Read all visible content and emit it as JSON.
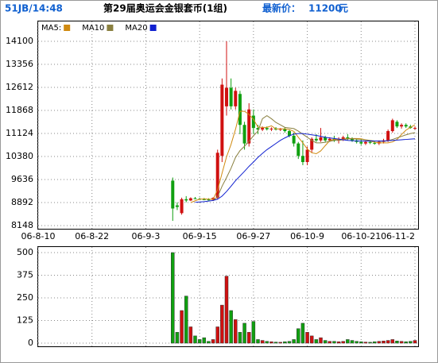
{
  "header": {
    "code": "51JB/14:48",
    "title": "第29届奥运会金银套币(1组)",
    "price_label": "最新价：",
    "price": 11200,
    "price_unit": "元"
  },
  "chart_data": {
    "type": "candlestick",
    "x": [
      "06-9-9",
      "06-9-10",
      "06-9-11",
      "06-9-12",
      "06-9-13",
      "06-9-14",
      "06-9-15",
      "06-9-16",
      "06-9-17",
      "06-9-18",
      "06-9-19",
      "06-9-20",
      "06-9-21",
      "06-9-22",
      "06-9-23",
      "06-9-24",
      "06-9-25",
      "06-9-26",
      "06-9-27",
      "06-9-28",
      "06-9-29",
      "06-9-30",
      "06-10-1",
      "06-10-2",
      "06-10-3",
      "06-10-4",
      "06-10-5",
      "06-10-6",
      "06-10-7",
      "06-10-8",
      "06-10-9",
      "06-10-10",
      "06-10-11",
      "06-10-12",
      "06-10-13",
      "06-10-14",
      "06-10-15",
      "06-10-16",
      "06-10-17",
      "06-10-18",
      "06-10-19",
      "06-10-20",
      "06-10-21",
      "06-10-22",
      "06-10-23",
      "06-10-24",
      "06-10-25",
      "06-10-26",
      "06-10-27",
      "06-10-28",
      "06-10-29",
      "06-10-30",
      "06-10-31",
      "06-11-1",
      "06-11-2"
    ],
    "open": [
      9600,
      8800,
      8550,
      9000,
      8960,
      9030,
      9010,
      9000,
      8990,
      8980,
      9050,
      10400,
      12000,
      12600,
      12000,
      12400,
      11400,
      10800,
      11700,
      11300,
      11250,
      11300,
      11260,
      11280,
      11250,
      11270,
      11200,
      11050,
      10800,
      10400,
      10200,
      10600,
      10950,
      10900,
      11000,
      10900,
      10950,
      10900,
      10950,
      11000,
      10950,
      10900,
      10850,
      10800,
      10850,
      10820,
      10800,
      10850,
      10900,
      11200,
      11500,
      11350,
      11400,
      11350,
      11300
    ],
    "high": [
      9700,
      8900,
      9050,
      9100,
      9060,
      9070,
      9050,
      9040,
      9030,
      9060,
      10600,
      12900,
      14100,
      12900,
      12600,
      12500,
      11500,
      12100,
      11900,
      11400,
      11350,
      11350,
      11320,
      11330,
      11300,
      11320,
      11250,
      11150,
      10850,
      10900,
      10700,
      11000,
      11100,
      11300,
      11050,
      11000,
      11050,
      11000,
      11050,
      11100,
      11000,
      10950,
      10950,
      10900,
      10900,
      10880,
      10900,
      10950,
      11250,
      11600,
      11550,
      11450,
      11450,
      11400,
      11350
    ],
    "low": [
      8300,
      8650,
      8500,
      8900,
      8940,
      9000,
      8980,
      8970,
      8960,
      8960,
      9000,
      10200,
      11700,
      11900,
      11900,
      11100,
      10600,
      10700,
      11100,
      11100,
      11200,
      11220,
      11200,
      11220,
      11200,
      11150,
      11000,
      10700,
      10300,
      10100,
      10100,
      10500,
      10850,
      10850,
      10850,
      10850,
      10850,
      10800,
      10880,
      10900,
      10850,
      10800,
      10750,
      10750,
      10780,
      10760,
      10750,
      10800,
      10850,
      11150,
      11300,
      11280,
      11300,
      11280,
      11250
    ],
    "close": [
      8700,
      8750,
      9000,
      8960,
      9030,
      9010,
      9000,
      8990,
      8980,
      9040,
      10500,
      12700,
      12600,
      12000,
      12500,
      11400,
      10800,
      11900,
      11300,
      11250,
      11300,
      11260,
      11280,
      11250,
      11270,
      11200,
      11050,
      10800,
      10400,
      10200,
      10600,
      10950,
      10900,
      11000,
      10900,
      10950,
      10900,
      10950,
      11000,
      10950,
      10900,
      10850,
      10800,
      10850,
      10820,
      10800,
      10850,
      10900,
      11200,
      11550,
      11350,
      11400,
      11350,
      11300,
      11300
    ],
    "volume": [
      500,
      60,
      180,
      260,
      90,
      40,
      20,
      30,
      10,
      20,
      90,
      210,
      370,
      180,
      130,
      60,
      110,
      60,
      120,
      20,
      15,
      10,
      8,
      6,
      5,
      8,
      10,
      20,
      80,
      110,
      60,
      40,
      20,
      30,
      15,
      10,
      10,
      8,
      10,
      20,
      15,
      10,
      8,
      6,
      5,
      8,
      10,
      12,
      15,
      20,
      12,
      10,
      8,
      10,
      15
    ],
    "series": [
      {
        "name": "MA5:",
        "color": "#d08a10",
        "values": [
          null,
          null,
          null,
          null,
          8890,
          8950,
          9000,
          9010,
          9000,
          9000,
          9300,
          9840,
          10370,
          10770,
          11260,
          11840,
          11840,
          11740,
          11580,
          11330,
          11320,
          11320,
          11370,
          11270,
          11270,
          11270,
          11250,
          11190,
          11000,
          10820,
          10620,
          10500,
          10470,
          10560,
          10730,
          10890,
          10930,
          10930,
          10940,
          10960,
          10960,
          10960,
          10950,
          10920,
          10880,
          10840,
          10820,
          10820,
          10820,
          10850,
          10930,
          11090,
          11230,
          11320,
          11400
        ]
      },
      {
        "name": "MA10",
        "color": "#8a8040",
        "values": [
          null,
          null,
          null,
          null,
          null,
          null,
          null,
          null,
          null,
          8950,
          9080,
          9420,
          9700,
          10000,
          10350,
          10570,
          10710,
          10870,
          11050,
          11200,
          11600,
          11700,
          11600,
          11480,
          11400,
          11320,
          11300,
          11280,
          11200,
          11100,
          11000,
          10900,
          10820,
          10820,
          10840,
          10870,
          10900,
          10900,
          10920,
          10950,
          10950,
          10940,
          10930,
          10920,
          10900,
          10880,
          10870,
          10870,
          10890,
          10930,
          10980,
          11030,
          11080,
          11120,
          11150
        ]
      },
      {
        "name": "MA20",
        "color": "#1020d0",
        "values": [
          null,
          null,
          null,
          null,
          null,
          8900,
          8910,
          8920,
          8940,
          8960,
          9000,
          9100,
          9250,
          9420,
          9600,
          9750,
          9900,
          10060,
          10200,
          10350,
          10480,
          10600,
          10700,
          10800,
          10900,
          10980,
          11050,
          11100,
          11120,
          11120,
          11100,
          11080,
          11060,
          11030,
          11000,
          10980,
          10960,
          10940,
          10920,
          10900,
          10890,
          10880,
          10880,
          10880,
          10880,
          10880,
          10880,
          10880,
          10890,
          10900,
          10910,
          10920,
          10930,
          10940,
          10950
        ]
      }
    ],
    "up_color": "#d01010",
    "down_color": "#10a010",
    "xlim": [
      "06-8-10",
      "06-11-2"
    ],
    "xticks": [
      "06-8-10",
      "06-8-22",
      "06-9-3",
      "06-9-15",
      "06-9-27",
      "06-10-9",
      "06-10-21",
      "06-11-2"
    ],
    "ylim": [
      8148,
      14100
    ],
    "yticks": [
      8148,
      8892,
      9636,
      10380,
      11124,
      11868,
      12612,
      13356,
      14100
    ],
    "volume_ylim": [
      0,
      500
    ],
    "volume_yticks": [
      0,
      125,
      250,
      375,
      500
    ],
    "grid": true
  }
}
